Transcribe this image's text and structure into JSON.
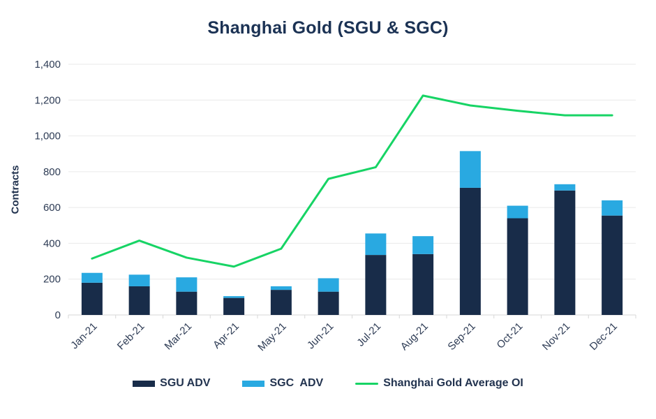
{
  "title": "Shanghai Gold (SGU & SGC)",
  "chart_data": {
    "type": "bar",
    "stacked": true,
    "title": "Shanghai Gold (SGU & SGC)",
    "xlabel": "",
    "ylabel": "Contracts",
    "ylim": [
      0,
      1400
    ],
    "grid": true,
    "legend_position": "bottom",
    "categories": [
      "Jan-21",
      "Feb-21",
      "Mar-21",
      "Apr-21",
      "May-21",
      "Jun-21",
      "Jul-21",
      "Aug-21",
      "Sep-21",
      "Oct-21",
      "Nov-21",
      "Dec-21"
    ],
    "y_ticks": [
      {
        "value": 0,
        "label": "0"
      },
      {
        "value": 200,
        "label": "200"
      },
      {
        "value": 400,
        "label": "400"
      },
      {
        "value": 600,
        "label": "600"
      },
      {
        "value": 800,
        "label": "800"
      },
      {
        "value": 1000,
        "label": "1,000"
      },
      {
        "value": 1200,
        "label": "1,200"
      },
      {
        "value": 1400,
        "label": "1,400"
      }
    ],
    "series": [
      {
        "name": "SGU ADV",
        "kind": "bar",
        "color": "#182c49",
        "values": [
          180,
          160,
          130,
          95,
          140,
          130,
          335,
          340,
          710,
          540,
          695,
          555
        ]
      },
      {
        "name": "SGC ADV",
        "kind": "bar",
        "color": "#29a9e1",
        "values": [
          55,
          65,
          80,
          10,
          20,
          75,
          120,
          100,
          205,
          70,
          35,
          85
        ]
      },
      {
        "name": "Shanghai Gold Average OI",
        "kind": "line",
        "color": "#17d465",
        "values": [
          315,
          415,
          320,
          270,
          370,
          760,
          825,
          1225,
          1170,
          1140,
          1115,
          1115
        ]
      }
    ]
  },
  "legend": {
    "items": [
      {
        "label": "SGU ADV",
        "color": "#182c49",
        "shape": "rect"
      },
      {
        "label": "SGC  ADV",
        "color": "#29a9e1",
        "shape": "rect"
      },
      {
        "label": "Shanghai Gold Average OI",
        "color": "#17d465",
        "shape": "line"
      }
    ]
  },
  "colors": {
    "sgu_bar": "#182c49",
    "sgc_bar": "#29a9e1",
    "oi_line": "#17d465",
    "grid": "#e9e9e9",
    "axis": "#d7d7d7",
    "tick_text": "#2e3c55"
  }
}
